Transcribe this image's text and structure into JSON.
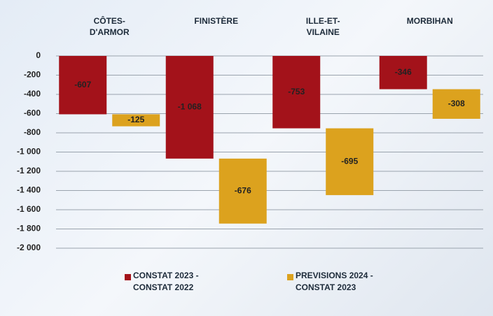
{
  "chart_data": {
    "type": "bar",
    "categories": [
      "CÔTES-D'ARMOR",
      "FINISTÈRE",
      "ILLE-ET-VILAINE",
      "MORBIHAN"
    ],
    "series": [
      {
        "name": "CONSTAT 2023 - CONSTAT 2022",
        "color": "#a3121a",
        "values": [
          -607,
          -1068,
          -753,
          -346
        ],
        "value_labels": [
          "-607",
          "-1 068",
          "-753",
          "-346"
        ]
      },
      {
        "name": "PREVISIONS 2024 - CONSTAT 2023",
        "color": "#dca21e",
        "values": [
          -125,
          -676,
          -695,
          -308
        ]
      }
    ],
    "ylim": [
      -2000,
      0
    ],
    "yticks": [
      0,
      -200,
      -400,
      -600,
      -800,
      {
        "value": -1000,
        "label": "-1 000"
      },
      {
        "value": -1200,
        "label": "-1 200"
      },
      {
        "value": -1400,
        "label": "-1 400"
      },
      {
        "value": -1600,
        "label": "-1 600"
      },
      {
        "value": -1800,
        "label": "-1 800"
      },
      {
        "value": -2000,
        "label": "-2 000"
      }
    ],
    "grid": true
  }
}
